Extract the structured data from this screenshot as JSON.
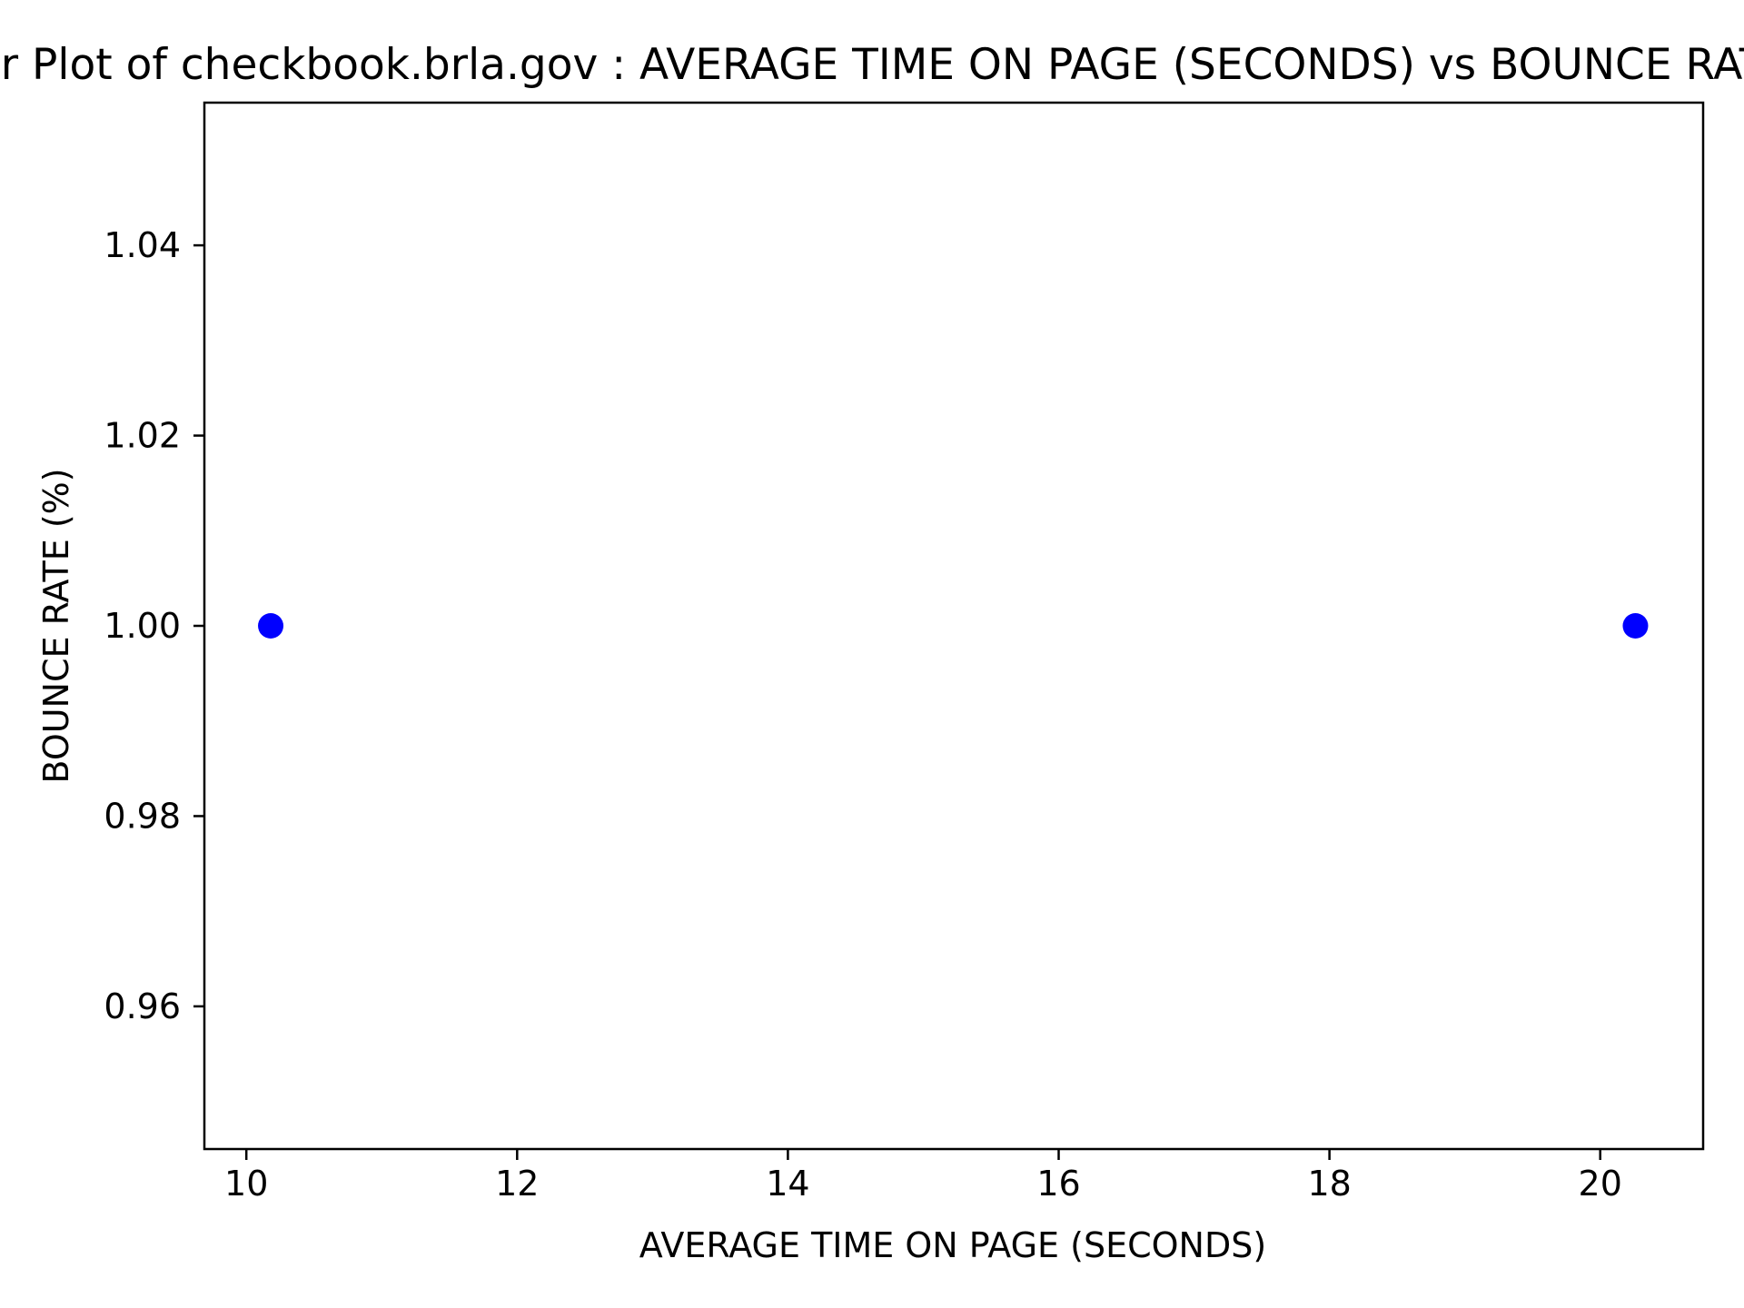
{
  "chart_data": {
    "type": "scatter",
    "title": "Scatter Plot of checkbook.brla.gov : AVERAGE TIME ON PAGE (SECONDS) vs BOUNCE RATE (%)",
    "xlabel": "AVERAGE TIME ON PAGE (SECONDS)",
    "ylabel": "BOUNCE RATE (%)",
    "xlim": [
      9.69,
      20.76
    ],
    "ylim": [
      0.945,
      1.055
    ],
    "xticks": [
      10,
      12,
      14,
      16,
      18,
      20
    ],
    "xtick_labels": [
      "10",
      "12",
      "14",
      "16",
      "18",
      "20"
    ],
    "yticks": [
      0.96,
      0.98,
      1.0,
      1.02,
      1.04
    ],
    "ytick_labels": [
      "0.96",
      "0.98",
      "1.00",
      "1.02",
      "1.04"
    ],
    "grid": false,
    "series": [
      {
        "color": "#0000ff",
        "points": [
          {
            "x": 10.18,
            "y": 1.0
          },
          {
            "x": 20.26,
            "y": 1.0
          }
        ]
      }
    ]
  }
}
